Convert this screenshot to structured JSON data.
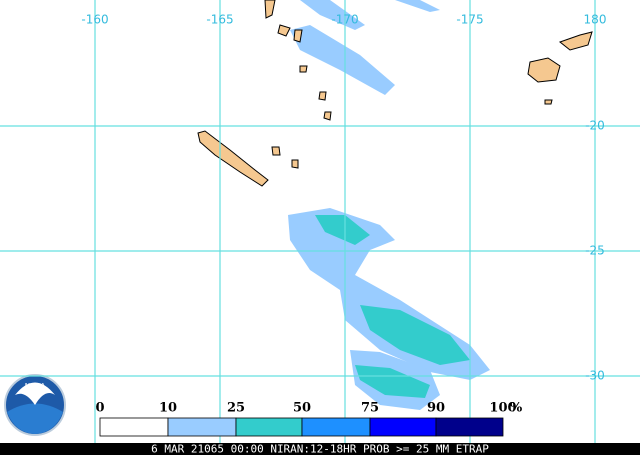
{
  "longitude_labels": [
    "-160",
    "-165",
    "-170",
    "-175",
    "180"
  ],
  "latitude_labels": [
    "-20",
    "-25",
    "-30"
  ],
  "legend": {
    "ticks": [
      "0",
      "10",
      "25",
      "50",
      "75",
      "90",
      "100"
    ],
    "unit": "%",
    "colors": [
      "#ffffff",
      "#99ccff",
      "#33cccc",
      "#1e90ff",
      "#0000ff",
      "#00008b"
    ]
  },
  "caption": "6 MAR 21065 00:00 NIRAN:12-18HR PROB >= 25 MM ETRAP"
}
